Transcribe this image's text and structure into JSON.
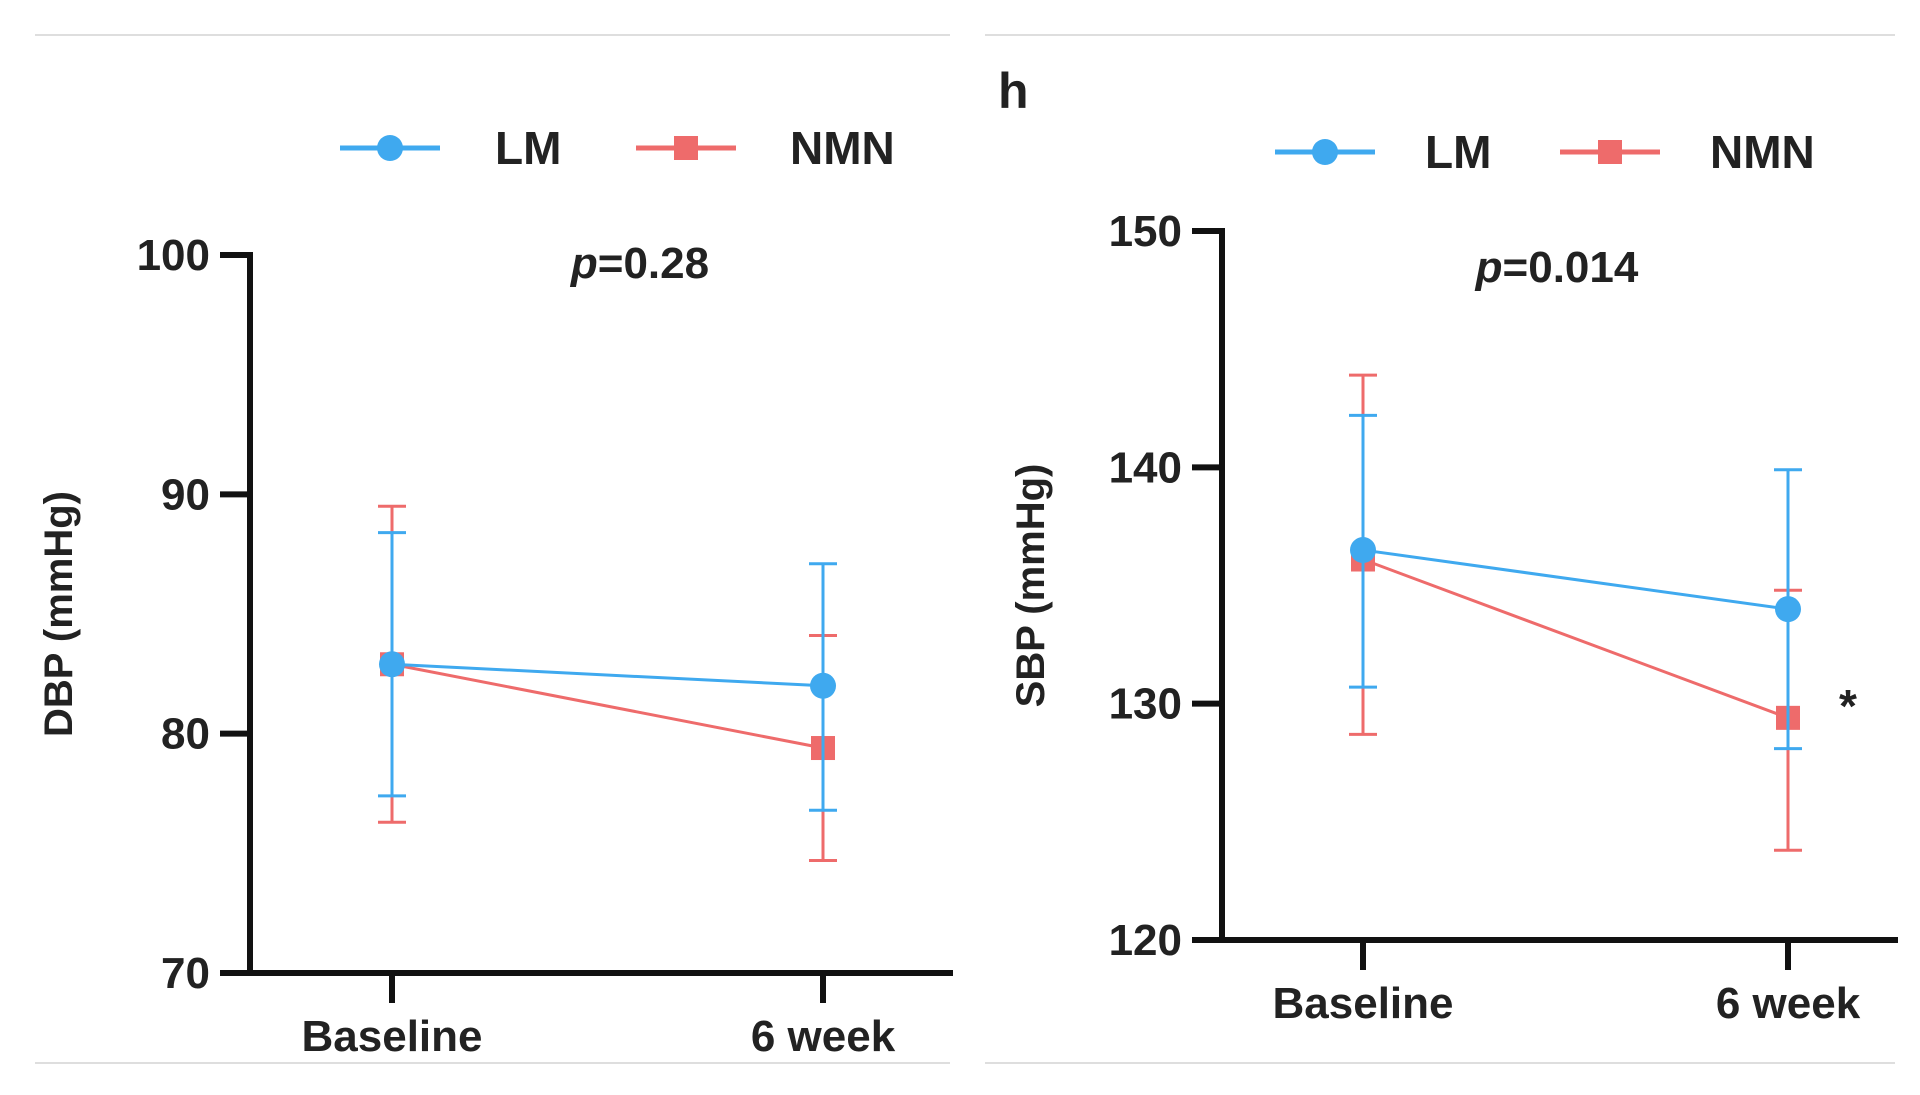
{
  "figure": {
    "panel_letter": "h"
  },
  "chart_data": [
    {
      "type": "line",
      "title": "",
      "xlabel": "",
      "ylabel": "DBP (mmHg)",
      "categories": [
        "Baseline",
        "6 week"
      ],
      "ylim": [
        70,
        100
      ],
      "yticks": [
        "70",
        "80",
        "90",
        "100"
      ],
      "annotation": {
        "p_symbol": "p",
        "p_value": "=0.28"
      },
      "legend": {
        "position": "top"
      },
      "grid": false,
      "series": [
        {
          "name": "LM",
          "color": "#3fa9ef",
          "marker": "circle",
          "values": [
            82.9,
            82.0
          ],
          "err_low": [
            77.4,
            76.8
          ],
          "err_high": [
            88.4,
            87.1
          ]
        },
        {
          "name": "NMN",
          "color": "#ee6b6b",
          "marker": "square",
          "values": [
            82.9,
            79.4
          ],
          "err_low": [
            76.3,
            74.7
          ],
          "err_high": [
            89.5,
            84.1
          ]
        }
      ]
    },
    {
      "type": "line",
      "title": "",
      "xlabel": "",
      "ylabel": "SBP (mmHg)",
      "categories": [
        "Baseline",
        "6 week"
      ],
      "ylim": [
        120,
        150
      ],
      "yticks": [
        "120",
        "130",
        "140",
        "150"
      ],
      "annotation": {
        "p_symbol": "p",
        "p_value": "=0.014",
        "significance_mark": "*"
      },
      "legend": {
        "position": "top"
      },
      "grid": false,
      "series": [
        {
          "name": "LM",
          "color": "#3fa9ef",
          "marker": "circle",
          "values": [
            136.5,
            134.0
          ],
          "err_low": [
            130.7,
            128.1
          ],
          "err_high": [
            142.2,
            139.9
          ]
        },
        {
          "name": "NMN",
          "color": "#ee6b6b",
          "marker": "square",
          "values": [
            136.1,
            129.4
          ],
          "err_low": [
            128.7,
            123.8
          ],
          "err_high": [
            143.9,
            134.8
          ]
        }
      ]
    }
  ]
}
